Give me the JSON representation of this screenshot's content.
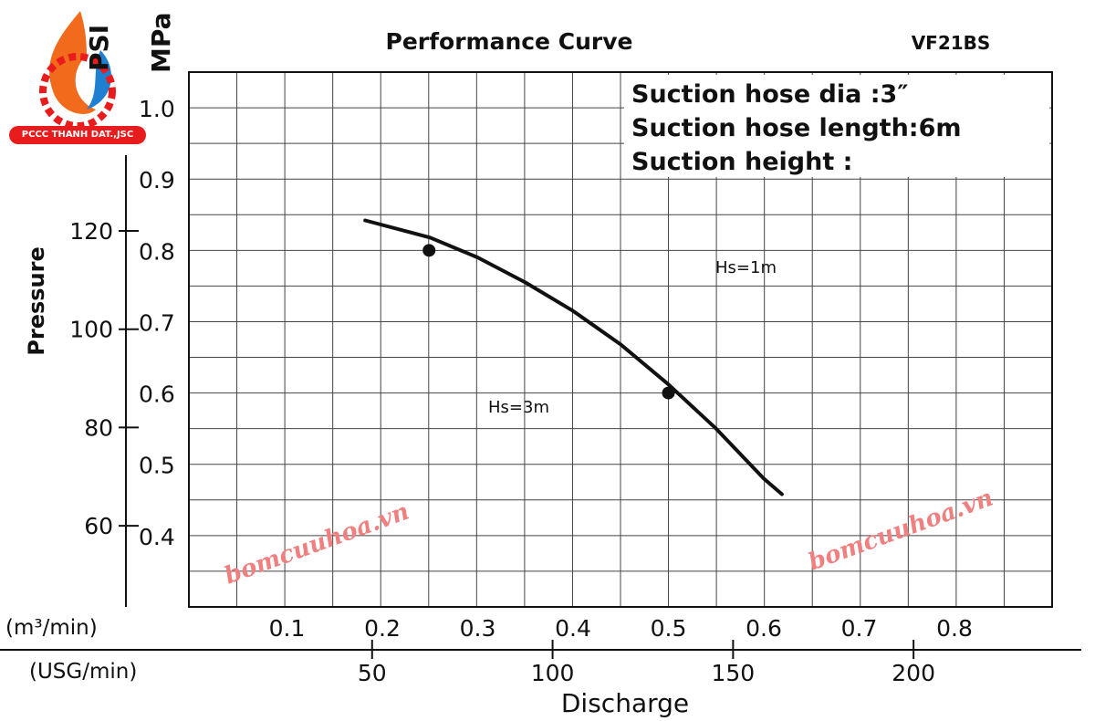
{
  "logo": {
    "text": "PCCC THANH DAT.,JSC"
  },
  "watermark": "bomcuuhoa.vn",
  "chart_data": {
    "type": "line",
    "title": "Performance Curve",
    "model": "VF21BS",
    "notes": [
      "Suction hose dia   :3″",
      "Suction hose length:6m",
      "Suction height   :"
    ],
    "xlabel": "Discharge",
    "x_unit_primary": "(m³/min)",
    "x_unit_secondary": "(USG/min)",
    "ylabel": "Pressure",
    "y_unit_primary": "MPa",
    "y_unit_secondary": "PSI",
    "xlim": [
      0,
      0.905
    ],
    "ylim": [
      0.3,
      1.05
    ],
    "x_ticks": [
      0.1,
      0.2,
      0.3,
      0.4,
      0.5,
      0.6,
      0.7,
      0.8
    ],
    "x_tick_labels": [
      "0.1",
      "0.2",
      "0.3",
      "0.4",
      "0.5",
      "0.6",
      "0.7",
      "0.8"
    ],
    "usg_ticks": [
      50,
      100,
      150,
      200
    ],
    "usg_tick_labels": [
      "50",
      "100",
      "150",
      "200"
    ],
    "y_ticks": [
      0.4,
      0.5,
      0.6,
      0.7,
      0.8,
      0.9,
      1.0
    ],
    "y_tick_labels": [
      "0.4",
      "0.5",
      "0.6",
      "0.7",
      "0.8",
      "0.9",
      "1.0"
    ],
    "psi_ticks": [
      60,
      80,
      100,
      120
    ],
    "psi_tick_labels": [
      "60",
      "80",
      "100",
      "120"
    ],
    "grid": true,
    "series": [
      {
        "name": "VF21BS",
        "x": [
          0.182,
          0.25,
          0.3,
          0.35,
          0.4,
          0.45,
          0.5,
          0.55,
          0.6,
          0.619
        ],
        "y": [
          0.842,
          0.818,
          0.79,
          0.755,
          0.715,
          0.668,
          0.612,
          0.55,
          0.48,
          0.458
        ]
      }
    ],
    "points": [
      {
        "x": 0.249,
        "y": 0.8,
        "label": "Hs=3m"
      },
      {
        "x": 0.5,
        "y": 0.6,
        "label": "Hs=1m"
      }
    ]
  }
}
